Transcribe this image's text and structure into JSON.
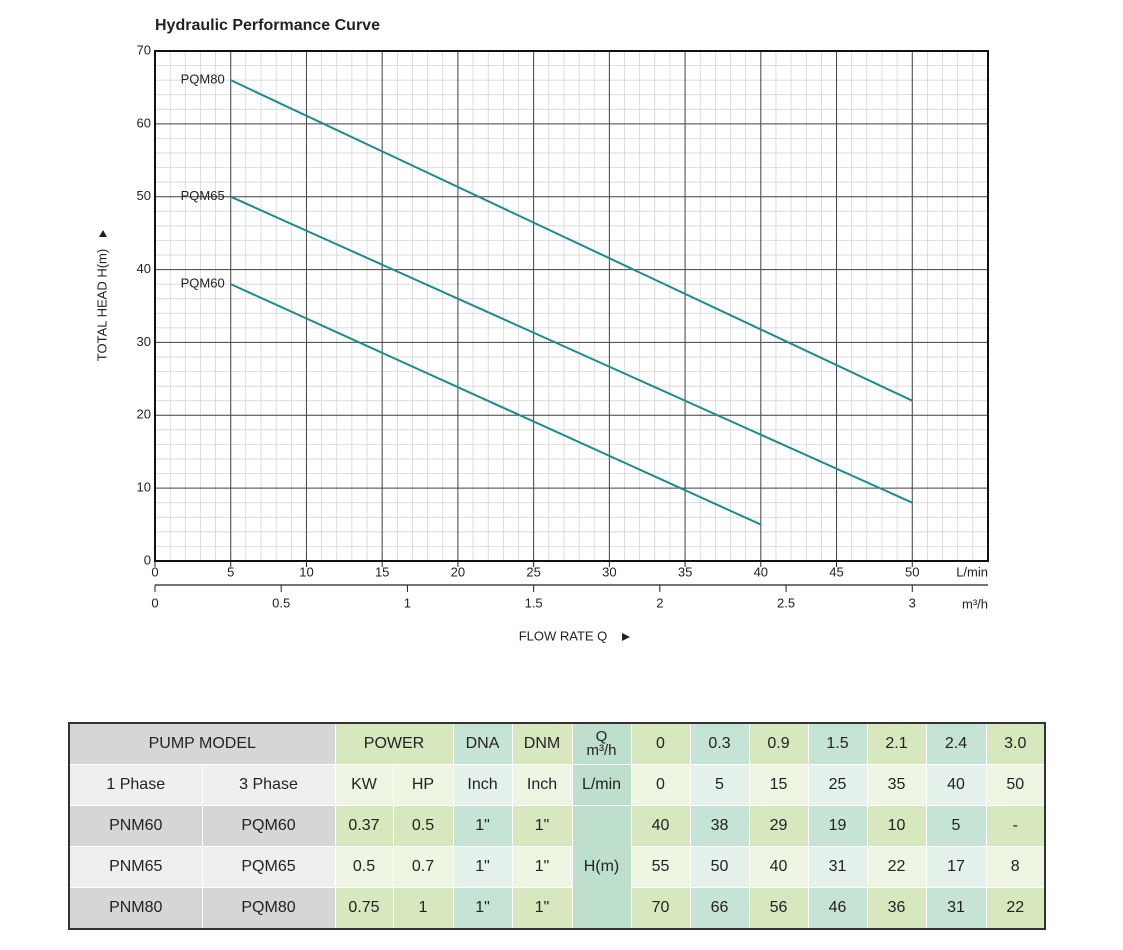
{
  "chart_data": {
    "type": "line",
    "title": "Hydraulic Performance Curve",
    "y_label": "TOTAL HEAD H(m)",
    "x_label": "FLOW RATE Q",
    "x_unit": "L/min",
    "x2_unit": "m³/h",
    "xlim": [
      0,
      55
    ],
    "xticks": [
      0,
      5,
      10,
      15,
      20,
      25,
      30,
      35,
      40,
      45,
      50
    ],
    "x2lim": [
      0,
      3.3
    ],
    "x2ticks": [
      0,
      0.5,
      1,
      1.5,
      2,
      2.5,
      3
    ],
    "ylim": [
      0,
      70
    ],
    "yticks": [
      0,
      10,
      20,
      30,
      40,
      50,
      60,
      70
    ],
    "grid": true,
    "minor_grid": true,
    "series": [
      {
        "name": "PQM80",
        "color": "#1c8c8c",
        "x": [
          5,
          50
        ],
        "values": [
          66,
          22
        ]
      },
      {
        "name": "PQM65",
        "color": "#1c8c8c",
        "x": [
          5,
          50
        ],
        "values": [
          50,
          8
        ]
      },
      {
        "name": "PQM60",
        "color": "#1c8c8c",
        "x": [
          5,
          40
        ],
        "values": [
          38,
          5
        ]
      }
    ]
  },
  "table": {
    "rows": [
      [
        "PUMP MODEL",
        "POWER",
        "DNA",
        "DNM",
        "Q",
        "m³/h",
        "0",
        "0.3",
        "0.9",
        "1.5",
        "2.1",
        "2.4",
        "3.0"
      ],
      [
        "1 Phase",
        "3 Phase",
        "KW",
        "HP",
        "Inch",
        "Inch",
        "L/min",
        "0",
        "5",
        "15",
        "25",
        "35",
        "40",
        "50"
      ],
      [
        "PNM60",
        "PQM60",
        "0.37",
        "0.5",
        "1\"",
        "1\"",
        "H(m)",
        "40",
        "38",
        "29",
        "19",
        "10",
        "5",
        "-"
      ],
      [
        "PNM65",
        "PQM65",
        "0.5",
        "0.7",
        "1\"",
        "1\"",
        "55",
        "50",
        "40",
        "31",
        "22",
        "17",
        "8"
      ],
      [
        "PNM80",
        "PQM80",
        "0.75",
        "1",
        "1\"",
        "1\"",
        "70",
        "66",
        "56",
        "46",
        "36",
        "31",
        "22"
      ]
    ]
  }
}
